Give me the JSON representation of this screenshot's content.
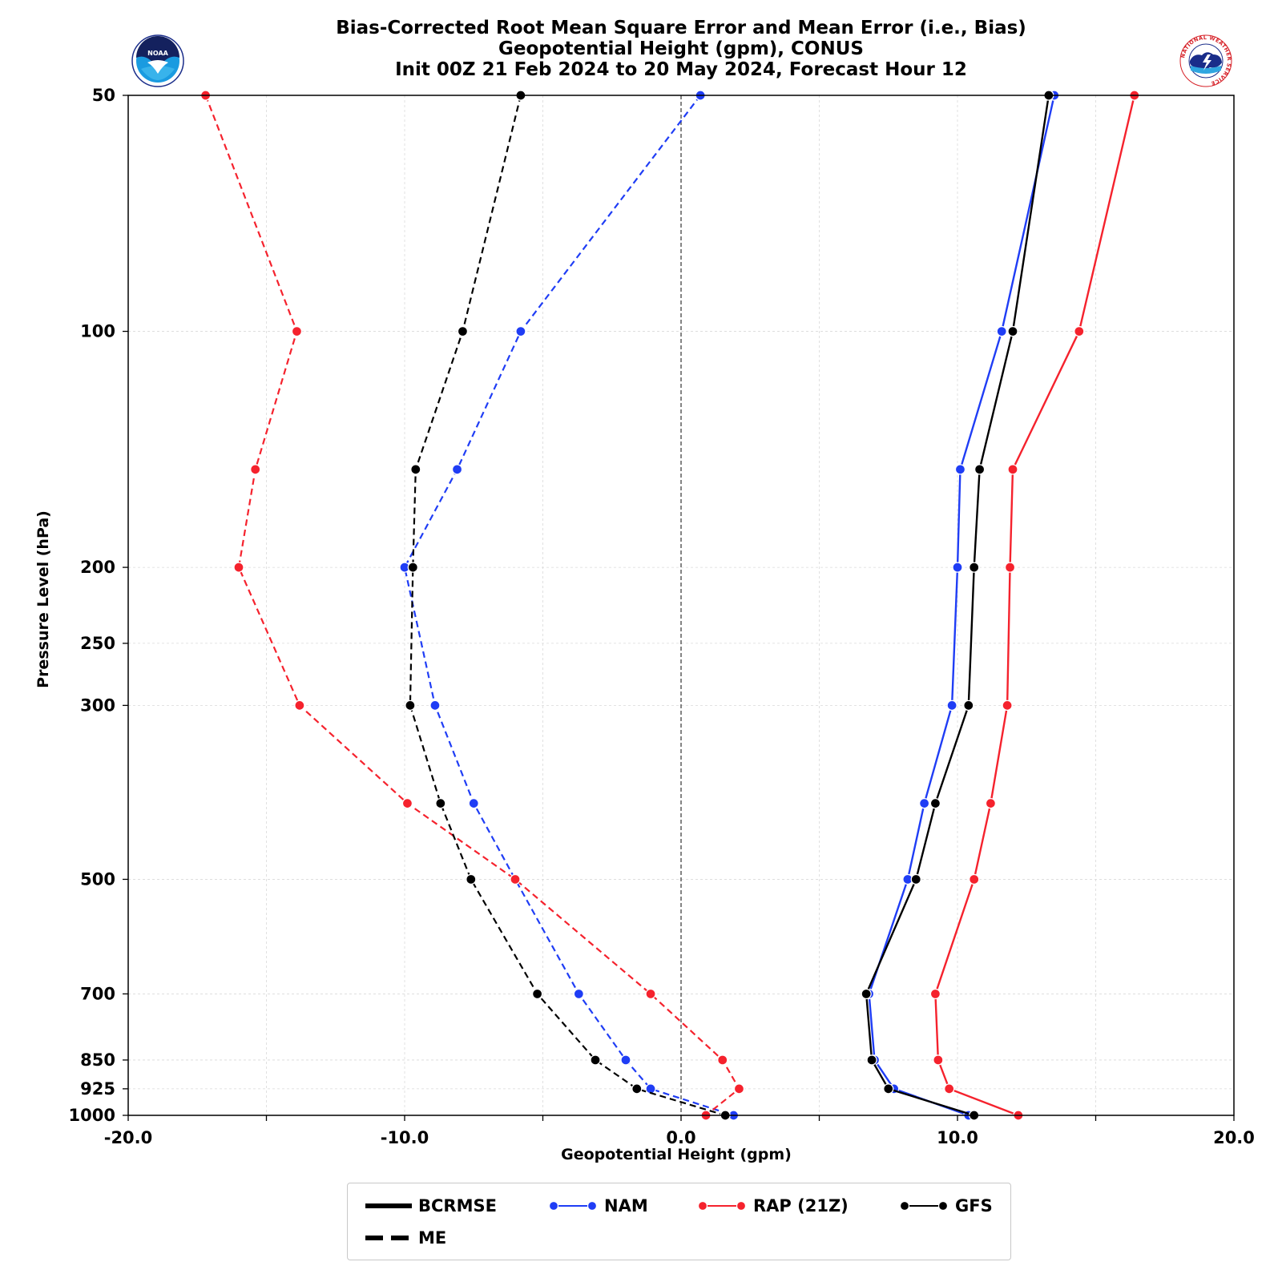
{
  "titles": [
    "Bias-Corrected Root Mean Square Error and Mean Error (i.e., Bias)",
    "Geopotential Height (gpm), CONUS",
    "Init 00Z 21 Feb 2024 to 20 May 2024, Forecast Hour 12"
  ],
  "logos": {
    "left": "NOAA",
    "right": "NATIONAL WEATHER SERVICE"
  },
  "chart_data": {
    "type": "line",
    "title": "Bias-Corrected Root Mean Square Error and Mean Error (i.e., Bias)",
    "xlabel": "Geopotential Height (gpm)",
    "ylabel": "Pressure Level (hPa)",
    "xlim": [
      -20,
      20
    ],
    "x_ticks": [
      -20,
      -10,
      0,
      10,
      20
    ],
    "x_tick_labels": [
      "-20.0",
      "-10.0",
      "0.0",
      "10.0",
      "20.0"
    ],
    "y_scale": "log",
    "y_inverted": true,
    "ylim": [
      1000,
      50
    ],
    "y_ticks": [
      50,
      100,
      200,
      250,
      300,
      500,
      700,
      850,
      925,
      1000
    ],
    "y_tick_labels": [
      "50",
      "100",
      "200",
      "250",
      "300",
      "500",
      "700",
      "850",
      "925",
      "1000"
    ],
    "grid": true,
    "zero_line": true,
    "levels": [
      50,
      100,
      150,
      200,
      300,
      400,
      500,
      700,
      850,
      925,
      1000
    ],
    "series": [
      {
        "name": "NAM",
        "metric": "BCRMSE",
        "color": "#1f3df5",
        "style": "solid",
        "values": [
          13.5,
          11.6,
          10.1,
          10.0,
          9.8,
          8.8,
          8.2,
          6.8,
          7.0,
          7.7,
          10.4
        ]
      },
      {
        "name": "NAM",
        "metric": "ME",
        "color": "#1f3df5",
        "style": "dashed",
        "values": [
          0.7,
          -5.8,
          -8.1,
          -10.0,
          -8.9,
          -7.5,
          -6.0,
          -3.7,
          -2.0,
          -1.1,
          1.9
        ]
      },
      {
        "name": "RAP (21Z)",
        "metric": "BCRMSE",
        "color": "#f5222d",
        "style": "solid",
        "values": [
          16.4,
          14.4,
          12.0,
          11.9,
          11.8,
          11.2,
          10.6,
          9.2,
          9.3,
          9.7,
          12.2
        ]
      },
      {
        "name": "RAP (21Z)",
        "metric": "ME",
        "color": "#f5222d",
        "style": "dashed",
        "values": [
          -17.2,
          -13.9,
          -15.4,
          -16.0,
          -13.8,
          -9.9,
          -6.0,
          -1.1,
          1.5,
          2.1,
          0.9
        ]
      },
      {
        "name": "GFS",
        "metric": "BCRMSE",
        "color": "#000000",
        "style": "solid",
        "values": [
          13.3,
          12.0,
          10.8,
          10.6,
          10.4,
          9.2,
          8.5,
          6.7,
          6.9,
          7.5,
          10.6
        ]
      },
      {
        "name": "GFS",
        "metric": "ME",
        "color": "#000000",
        "style": "dashed",
        "values": [
          -5.8,
          -7.9,
          -9.6,
          -9.7,
          -9.8,
          -8.7,
          -7.6,
          -5.2,
          -3.1,
          -1.6,
          1.6
        ]
      }
    ],
    "legend": {
      "placement": "bottom",
      "entries": [
        "BCRMSE",
        "NAM",
        "RAP (21Z)",
        "GFS",
        "ME"
      ]
    }
  }
}
